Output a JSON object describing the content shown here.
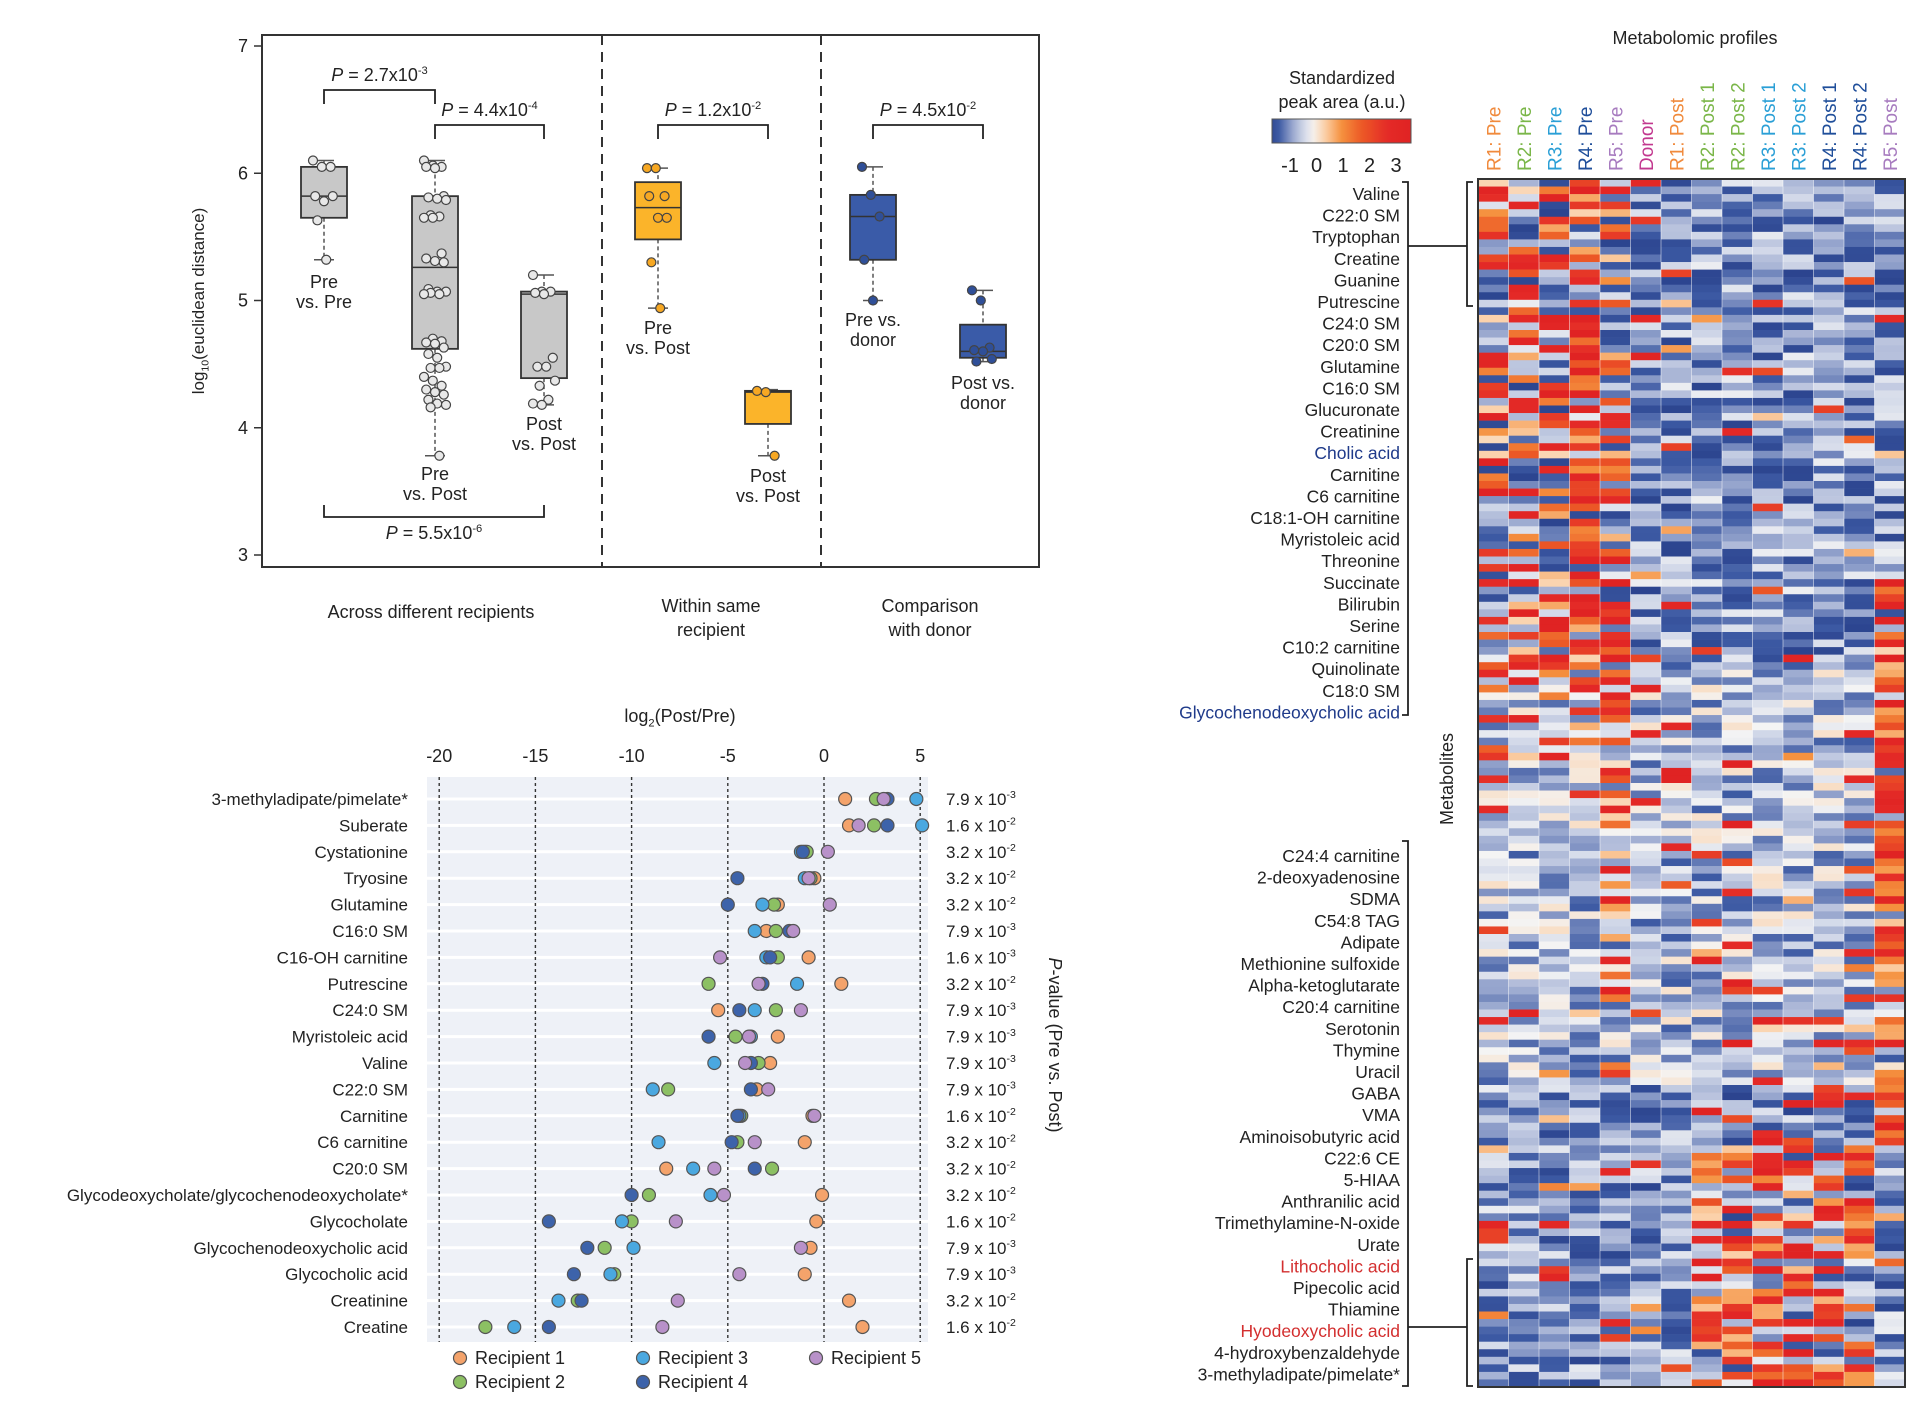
{
  "chart_data": [
    {
      "type": "box",
      "ylabel": "log10(euclidean distance)",
      "ylabel_base": "log",
      "ylabel_sub": "10",
      "ylabel_rest": "(euclidean distance)",
      "ylim": [
        3,
        7
      ],
      "yticks": [
        "3",
        "4",
        "5",
        "6",
        "7"
      ],
      "sections": [
        {
          "label_lines": [
            "Across different recipients"
          ]
        },
        {
          "label_lines": [
            "Within same",
            "recipient"
          ]
        },
        {
          "label_lines": [
            "Comparison",
            "with donor"
          ]
        }
      ],
      "groups": [
        {
          "label_lines": [
            "Pre",
            "vs. Pre"
          ],
          "section": 0,
          "color": "#c8c8c8",
          "min": 5.32,
          "q1": 5.65,
          "median": 5.82,
          "q3": 6.05,
          "max": 6.1,
          "points": [
            6.1,
            6.05,
            6.05,
            5.82,
            5.78,
            5.82,
            5.63,
            5.32
          ]
        },
        {
          "label_lines": [
            "Pre",
            "vs. Post"
          ],
          "section": 0,
          "color": "#c8c8c8",
          "min": 3.78,
          "q1": 4.62,
          "median": 5.26,
          "q3": 5.82,
          "max": 6.1,
          "points": [
            6.1,
            6.06,
            6.05,
            6.05,
            6.04,
            5.82,
            5.81,
            5.8,
            5.79,
            5.67,
            5.66,
            5.65,
            5.65,
            5.37,
            5.33,
            5.31,
            5.3,
            5.09,
            5.07,
            5.07,
            5.06,
            5.05,
            5.05,
            4.7,
            4.68,
            4.67,
            4.66,
            4.63,
            4.58,
            4.55,
            4.48,
            4.47,
            4.47,
            4.4,
            4.37,
            4.33,
            4.3,
            4.28,
            4.26,
            4.22,
            4.19,
            4.18,
            4.16,
            3.78
          ]
        },
        {
          "label_lines": [
            "Post",
            "vs. Post"
          ],
          "section": 0,
          "color": "#c8c8c8",
          "min": 4.18,
          "q1": 4.39,
          "median": 5.05,
          "q3": 5.07,
          "max": 5.2,
          "points": [
            5.2,
            5.07,
            5.07,
            5.06,
            5.05,
            4.55,
            4.48,
            4.48,
            4.37,
            4.33,
            4.22,
            4.19,
            4.18
          ]
        },
        {
          "label_lines": [
            "Pre",
            "vs. Post"
          ],
          "section": 1,
          "color": "#fbb42a",
          "min": 4.94,
          "q1": 5.48,
          "median": 5.73,
          "q3": 5.93,
          "max": 6.04,
          "points": [
            6.04,
            6.04,
            5.82,
            5.82,
            5.65,
            5.65,
            5.3,
            4.94
          ]
        },
        {
          "label_lines": [
            "Post",
            "vs. Post"
          ],
          "section": 1,
          "color": "#fbb42a",
          "min": 3.78,
          "q1": 4.03,
          "median": 4.28,
          "q3": 4.29,
          "max": 4.3,
          "points": [
            4.29,
            4.28,
            3.78
          ]
        },
        {
          "label_lines": [
            "Pre vs.",
            "donor"
          ],
          "section": 2,
          "color": "#3a5ba8",
          "min": 5.0,
          "q1": 5.32,
          "median": 5.66,
          "q3": 5.83,
          "max": 6.05,
          "points": [
            6.05,
            5.83,
            5.66,
            5.32,
            5.0
          ]
        },
        {
          "label_lines": [
            "Post vs.",
            "donor"
          ],
          "section": 2,
          "color": "#3a5ba8",
          "min": 4.52,
          "q1": 4.55,
          "median": 4.6,
          "q3": 4.81,
          "max": 5.08,
          "points": [
            5.08,
            5.0,
            4.63,
            4.61,
            4.6,
            4.54,
            4.52
          ]
        }
      ],
      "comparisons": [
        {
          "from": 0,
          "to": 1,
          "p_base": "2.7x10",
          "p_exp": "-3",
          "side": "top"
        },
        {
          "from": 1,
          "to": 2,
          "p_base": "4.4x10",
          "p_exp": "-4",
          "side": "top"
        },
        {
          "from": 0,
          "to": 2,
          "p_base": "5.5x10",
          "p_exp": "-6",
          "side": "bottom"
        },
        {
          "from": 3,
          "to": 4,
          "p_base": "1.2x10",
          "p_exp": "-2",
          "side": "top"
        },
        {
          "from": 5,
          "to": 6,
          "p_base": "4.5x10",
          "p_exp": "-2",
          "side": "top"
        }
      ],
      "p_prefix": "P",
      "p_eq": " = "
    },
    {
      "type": "scatter",
      "xlabel_base": "log",
      "xlabel_sub": "2",
      "xlabel_rest": "(Post/Pre)",
      "xlim": [
        -20,
        5
      ],
      "xticks": [
        "-20",
        "-15",
        "-10",
        "-5",
        "0",
        "5"
      ],
      "grid": "vertical dashed",
      "right_label_italic": "P",
      "right_label_rest": "-value (Pre vs. Post)",
      "legend_placement": "bottom",
      "series": [
        {
          "name": "Recipient 1",
          "color": "#f4a36b"
        },
        {
          "name": "Recipient 2",
          "color": "#8cc063"
        },
        {
          "name": "Recipient 3",
          "color": "#4aa8e0"
        },
        {
          "name": "Recipient 4",
          "color": "#3d63aa"
        },
        {
          "name": "Recipient 5",
          "color": "#b891c9"
        }
      ],
      "legend_order": [
        0,
        2,
        4,
        1,
        3
      ],
      "rows": [
        {
          "metabolite": "3-methyladipate/pimelate*",
          "values": [
            1.1,
            2.7,
            4.8,
            3.3,
            3.1
          ],
          "p_base": "7.9 x 10",
          "p_exp": "-3"
        },
        {
          "metabolite": "Suberate",
          "values": [
            1.3,
            2.6,
            5.1,
            3.3,
            1.8
          ],
          "p_base": "1.6 x 10",
          "p_exp": "-2"
        },
        {
          "metabolite": "Cystationine",
          "values": [
            -1.0,
            -0.9,
            -1.2,
            -1.1,
            0.2
          ],
          "p_base": "3.2 x 10",
          "p_exp": "-2"
        },
        {
          "metabolite": "Tryosine",
          "values": [
            -0.5,
            -0.7,
            -1.0,
            -4.5,
            -0.8
          ],
          "p_base": "3.2 x 10",
          "p_exp": "-2"
        },
        {
          "metabolite": "Glutamine",
          "values": [
            -2.4,
            -2.6,
            -3.2,
            -5.0,
            0.3
          ],
          "p_base": "3.2 x 10",
          "p_exp": "-2"
        },
        {
          "metabolite": "C16:0 SM",
          "values": [
            -3.0,
            -2.5,
            -3.6,
            -1.8,
            -1.6
          ],
          "p_base": "7.9 x 10",
          "p_exp": "-3"
        },
        {
          "metabolite": "C16-OH carnitine",
          "values": [
            -0.8,
            -2.4,
            -3.0,
            -2.8,
            -5.4
          ],
          "p_base": "1.6 x 10",
          "p_exp": "-3"
        },
        {
          "metabolite": "Putrescine",
          "values": [
            0.9,
            -6.0,
            -1.4,
            -3.2,
            -3.4
          ],
          "p_base": "3.2 x 10",
          "p_exp": "-2"
        },
        {
          "metabolite": "C24:0 SM",
          "values": [
            -5.5,
            -2.5,
            -3.6,
            -4.4,
            -1.2
          ],
          "p_base": "7.9 x 10",
          "p_exp": "-3"
        },
        {
          "metabolite": "Myristoleic acid",
          "values": [
            -2.4,
            -4.6,
            -3.8,
            -6.0,
            -3.9
          ],
          "p_base": "7.9 x 10",
          "p_exp": "-3"
        },
        {
          "metabolite": "Valine",
          "values": [
            -2.8,
            -3.4,
            -5.7,
            -3.8,
            -4.1
          ],
          "p_base": "7.9 x 10",
          "p_exp": "-3"
        },
        {
          "metabolite": "C22:0 SM",
          "values": [
            -3.5,
            -8.1,
            -8.9,
            -3.8,
            -2.9
          ],
          "p_base": "7.9 x 10",
          "p_exp": "-3"
        },
        {
          "metabolite": "Carnitine",
          "values": [
            -0.6,
            -4.3,
            -4.4,
            -4.5,
            -0.5
          ],
          "p_base": "1.6 x 10",
          "p_exp": "-2"
        },
        {
          "metabolite": "C6 carnitine",
          "values": [
            -1.0,
            -4.5,
            -8.6,
            -4.8,
            -3.6
          ],
          "p_base": "3.2 x 10",
          "p_exp": "-2"
        },
        {
          "metabolite": "C20:0 SM",
          "values": [
            -8.2,
            -2.7,
            -6.8,
            -3.6,
            -5.7
          ],
          "p_base": "3.2 x 10",
          "p_exp": "-2"
        },
        {
          "metabolite": "Glycodeoxycholate/glycochenodeoxycholate*",
          "values": [
            -0.1,
            -9.1,
            -5.9,
            -10.0,
            -5.2
          ],
          "p_base": "3.2 x 10",
          "p_exp": "-2"
        },
        {
          "metabolite": "Glycocholate",
          "values": [
            -0.4,
            -10.0,
            -10.5,
            -14.3,
            -7.7
          ],
          "p_base": "1.6 x 10",
          "p_exp": "-2"
        },
        {
          "metabolite": "Glycochenodeoxycholic acid",
          "values": [
            -0.7,
            -11.4,
            -9.9,
            -12.3,
            -1.2
          ],
          "p_base": "7.9 x 10",
          "p_exp": "-3"
        },
        {
          "metabolite": "Glycocholic acid",
          "values": [
            -1.0,
            -10.9,
            -11.1,
            -13.0,
            -4.4
          ],
          "p_base": "7.9 x 10",
          "p_exp": "-3"
        },
        {
          "metabolite": "Creatinine",
          "values": [
            1.3,
            -12.8,
            -13.8,
            -12.6,
            -7.6
          ],
          "p_base": "3.2 x 10",
          "p_exp": "-2"
        },
        {
          "metabolite": "Creatine",
          "values": [
            2.0,
            -17.6,
            -16.1,
            -14.3,
            -8.4
          ],
          "p_base": "1.6 x 10",
          "p_exp": "-2"
        }
      ]
    },
    {
      "type": "heatmap",
      "title": "Metabolomic profiles",
      "colorbar_title_lines": [
        "Standardized",
        "peak area (a.u.)"
      ],
      "colorbar_ticks": [
        "-1",
        "0",
        "1",
        "2",
        "3"
      ],
      "colorbar_range": [
        -1,
        3
      ],
      "ylabel": "Metabolites",
      "columns": [
        {
          "label": "R1: Pre",
          "color": "#f08a3c"
        },
        {
          "label": "R2: Pre",
          "color": "#7ab648"
        },
        {
          "label": "R3: Pre",
          "color": "#2a9fd6"
        },
        {
          "label": "R4: Pre",
          "color": "#1f4e9a"
        },
        {
          "label": "R5: Pre",
          "color": "#a77bbf"
        },
        {
          "label": "Donor",
          "color": "#c2388f"
        },
        {
          "label": "R1: Post",
          "color": "#f08a3c"
        },
        {
          "label": "R2: Post 1",
          "color": "#7ab648"
        },
        {
          "label": "R2: Post 2",
          "color": "#7ab648"
        },
        {
          "label": "R3: Post 1",
          "color": "#2a9fd6"
        },
        {
          "label": "R3: Post 2",
          "color": "#2a9fd6"
        },
        {
          "label": "R4: Post 1",
          "color": "#1f4e9a"
        },
        {
          "label": "R4: Post 2",
          "color": "#1f4e9a"
        },
        {
          "label": "R5: Post",
          "color": "#a77bbf"
        }
      ],
      "row_label_groups": [
        {
          "labels": [
            {
              "text": "Valine"
            },
            {
              "text": "C22:0 SM"
            },
            {
              "text": "Tryptophan"
            },
            {
              "text": "Creatine"
            },
            {
              "text": "Guanine"
            },
            {
              "text": "Putrescine"
            },
            {
              "text": "C24:0 SM"
            },
            {
              "text": "C20:0 SM"
            },
            {
              "text": "Glutamine"
            },
            {
              "text": "C16:0 SM"
            },
            {
              "text": "Glucuronate"
            },
            {
              "text": "Creatinine"
            },
            {
              "text": "Cholic acid",
              "color": "#1f3a8a"
            },
            {
              "text": "Carnitine"
            },
            {
              "text": "C6 carnitine"
            },
            {
              "text": "C18:1-OH carnitine"
            },
            {
              "text": "Myristoleic acid"
            },
            {
              "text": "Threonine"
            },
            {
              "text": "Succinate"
            },
            {
              "text": "Bilirubin"
            },
            {
              "text": "Serine"
            },
            {
              "text": "C10:2 carnitine"
            },
            {
              "text": "Quinolinate"
            },
            {
              "text": "C18:0 SM"
            },
            {
              "text": "Glycochenodeoxycholic acid",
              "color": "#1f3a8a"
            }
          ]
        },
        {
          "labels": [
            {
              "text": "C24:4 carnitine"
            },
            {
              "text": "2-deoxyadenosine"
            },
            {
              "text": "SDMA"
            },
            {
              "text": "C54:8 TAG"
            },
            {
              "text": "Adipate"
            },
            {
              "text": "Methionine sulfoxide"
            },
            {
              "text": "Alpha-ketoglutarate"
            },
            {
              "text": "C20:4 carnitine"
            },
            {
              "text": "Serotonin"
            },
            {
              "text": "Thymine"
            },
            {
              "text": "Uracil"
            },
            {
              "text": "GABA"
            },
            {
              "text": "VMA"
            },
            {
              "text": "Aminoisobutyric acid"
            },
            {
              "text": "C22:6 CE"
            },
            {
              "text": "5-HIAA"
            },
            {
              "text": "Anthranilic acid"
            },
            {
              "text": "Trimethylamine-N-oxide"
            },
            {
              "text": "Urate"
            },
            {
              "text": "Lithocholic acid",
              "color": "#d32f2f"
            },
            {
              "text": "Pipecolic acid"
            },
            {
              "text": "Thiamine"
            },
            {
              "text": "Hyodeoxycholic acid",
              "color": "#d32f2f"
            },
            {
              "text": "4-hydroxybenzaldehyde"
            },
            {
              "text": "3-methyladipate/pimelate*"
            }
          ]
        }
      ],
      "colors": {
        "low": "#1b2f7a",
        "mid": "#f4f4f4",
        "high": "#e02323"
      }
    }
  ]
}
